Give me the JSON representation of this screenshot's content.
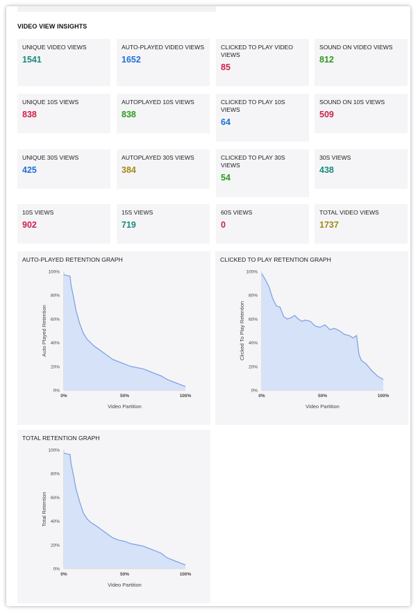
{
  "section_title": "VIDEO VIEW INSIGHTS",
  "metrics": [
    {
      "label": "UNIQUE VIDEO VIEWS",
      "value": "1541",
      "color": "#1a8a7a"
    },
    {
      "label": "AUTO-PLAYED VIDEO VIEWS",
      "value": "1652",
      "color": "#1f6fd6"
    },
    {
      "label": "CLICKED TO PLAY VIDEO VIEWS",
      "value": "85",
      "color": "#d0204a"
    },
    {
      "label": "SOUND ON VIDEO VIEWS",
      "value": "812",
      "color": "#2e9a1f"
    },
    {
      "label": "UNIQUE 10S VIEWS",
      "value": "838",
      "color": "#d0204a"
    },
    {
      "label": "AUTOPLAYED 10S VIEWS",
      "value": "838",
      "color": "#2e9a1f"
    },
    {
      "label": "CLICKED TO PLAY 10S VIEWS",
      "value": "64",
      "color": "#1f6fd6"
    },
    {
      "label": "SOUND ON 10S VIEWS",
      "value": "509",
      "color": "#d0204a"
    },
    {
      "label": "UNIQUE 30S VIEWS",
      "value": "425",
      "color": "#1f6fd6"
    },
    {
      "label": "AUTOPLAYED 30S VIEWS",
      "value": "384",
      "color": "#a08a14"
    },
    {
      "label": "CLICKED TO PLAY 30S VIEWS",
      "value": "54",
      "color": "#2e9a1f"
    },
    {
      "label": "30S VIEWS",
      "value": "438",
      "color": "#1a8a7a"
    },
    {
      "label": "10S VIEWS",
      "value": "902",
      "color": "#d0204a"
    },
    {
      "label": "15S VIEWS",
      "value": "719",
      "color": "#1a8a7a"
    },
    {
      "label": "60S VIEWS",
      "value": "0",
      "color": "#d0204a"
    },
    {
      "label": "TOTAL VIDEO VIEWS",
      "value": "1737",
      "color": "#a08a14"
    }
  ],
  "chart_data": [
    {
      "type": "area",
      "title": "AUTO-PLAYED RETENTION GRAPH",
      "xlabel": "Video Partition",
      "ylabel": "Auto Played Retention",
      "xlim": [
        0,
        100
      ],
      "ylim": [
        0,
        100
      ],
      "x_ticks": [
        "0%",
        "50%",
        "100%"
      ],
      "y_ticks": [
        "0%",
        "20%",
        "40%",
        "60%",
        "80%",
        "100%"
      ],
      "x": [
        0,
        1,
        5,
        6,
        8,
        10,
        13,
        16,
        19,
        22,
        25,
        28,
        32,
        36,
        40,
        45,
        50,
        55,
        60,
        65,
        70,
        75,
        80,
        85,
        90,
        95,
        100
      ],
      "values": [
        97,
        97,
        96,
        88,
        78,
        67,
        56,
        48,
        43,
        40,
        37,
        35,
        32,
        29,
        26,
        24,
        22,
        20,
        19,
        18,
        16,
        14,
        12,
        9,
        7,
        5,
        3
      ],
      "color": "#7ea3e6"
    },
    {
      "type": "area",
      "title": "CLICKED TO PLAY RETENTION GRAPH",
      "xlabel": "Video Partition",
      "ylabel": "Clicked To Play Retention",
      "xlim": [
        0,
        100
      ],
      "ylim": [
        0,
        100
      ],
      "x_ticks": [
        "0%",
        "50%",
        "100%"
      ],
      "y_ticks": [
        "0%",
        "20%",
        "40%",
        "60%",
        "80%",
        "100%"
      ],
      "x": [
        0,
        3,
        6,
        9,
        12,
        15,
        18,
        21,
        24,
        27,
        30,
        33,
        36,
        40,
        44,
        48,
        52,
        56,
        60,
        64,
        68,
        72,
        75,
        78,
        80,
        82,
        86,
        90,
        95,
        100
      ],
      "values": [
        98,
        93,
        87,
        77,
        71,
        70,
        62,
        60,
        61,
        63,
        60,
        58,
        59,
        58,
        54,
        53,
        55,
        51,
        52,
        50,
        47,
        46,
        44,
        46,
        30,
        25,
        22,
        17,
        12,
        9
      ],
      "color": "#7ea3e6"
    },
    {
      "type": "area",
      "title": "TOTAL RETENTION GRAPH",
      "xlabel": "Video Partition",
      "ylabel": "Total Retention",
      "xlim": [
        0,
        100
      ],
      "ylim": [
        0,
        100
      ],
      "x_ticks": [
        "0%",
        "50%",
        "100%"
      ],
      "y_ticks": [
        "0%",
        "20%",
        "40%",
        "60%",
        "80%",
        "100%"
      ],
      "x": [
        0,
        1,
        5,
        6,
        8,
        10,
        13,
        16,
        19,
        22,
        25,
        28,
        32,
        36,
        40,
        45,
        50,
        55,
        60,
        65,
        70,
        75,
        80,
        85,
        90,
        95,
        100
      ],
      "values": [
        97,
        97,
        96,
        88,
        78,
        67,
        56,
        47,
        42,
        39,
        37,
        35,
        32,
        29,
        26,
        24,
        23,
        21,
        20,
        19,
        17,
        15,
        13,
        9,
        7,
        5,
        3
      ],
      "color": "#7ea3e6"
    }
  ]
}
